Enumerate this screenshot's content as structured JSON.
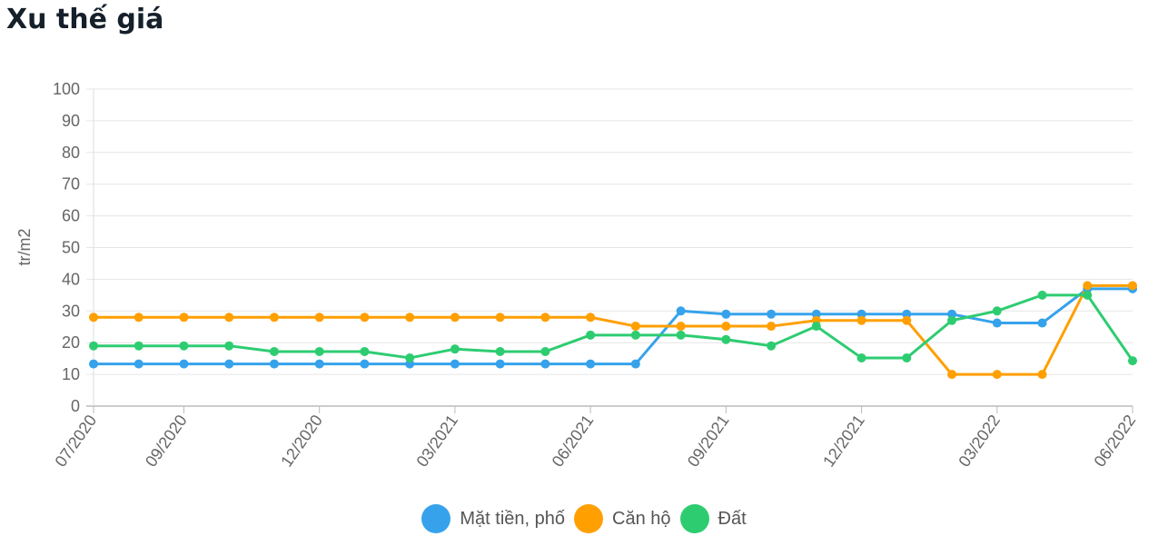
{
  "page": {
    "title": "Xu thế giá"
  },
  "chart_data": {
    "type": "line",
    "title": "",
    "xlabel": "",
    "ylabel": "tr/m2",
    "ylim": [
      0,
      100
    ],
    "yticks": [
      0,
      10,
      20,
      30,
      40,
      50,
      60,
      70,
      80,
      90,
      100
    ],
    "grid": true,
    "legend_position": "bottom",
    "categories": [
      "07/2020",
      "08/2020",
      "09/2020",
      "10/2020",
      "11/2020",
      "12/2020",
      "01/2021",
      "02/2021",
      "03/2021",
      "04/2021",
      "05/2021",
      "06/2021",
      "07/2021",
      "08/2021",
      "09/2021",
      "10/2021",
      "11/2021",
      "12/2021",
      "01/2022",
      "02/2022",
      "03/2022",
      "04/2022",
      "05/2022",
      "06/2022"
    ],
    "tick_labels": [
      "07/2020",
      "09/2020",
      "12/2020",
      "03/2021",
      "06/2021",
      "09/2021",
      "12/2021",
      "03/2022",
      "06/2022"
    ],
    "series": [
      {
        "name": "Mặt tiền, phố",
        "color": "#36a2eb",
        "values": [
          13.3,
          13.3,
          13.3,
          13.3,
          13.3,
          13.3,
          13.3,
          13.3,
          13.3,
          13.3,
          13.3,
          13.3,
          13.3,
          30,
          29,
          29,
          29,
          29,
          29,
          29,
          26.2,
          26.2,
          37,
          37
        ]
      },
      {
        "name": "Căn hộ",
        "color": "#ff9f00",
        "values": [
          28,
          28,
          28,
          28,
          28,
          28,
          28,
          28,
          28,
          28,
          28,
          28,
          25.2,
          25.2,
          25.2,
          25.2,
          27,
          27,
          27,
          10,
          10,
          10,
          38,
          38
        ]
      },
      {
        "name": "Đất",
        "color": "#2ecc71",
        "values": [
          19,
          19,
          19,
          19,
          17.2,
          17.2,
          17.2,
          15.2,
          18,
          17.2,
          17.2,
          22.4,
          22.4,
          22.4,
          21,
          19,
          25.2,
          15.2,
          15.2,
          27,
          30,
          35,
          35,
          14.3
        ]
      }
    ]
  }
}
